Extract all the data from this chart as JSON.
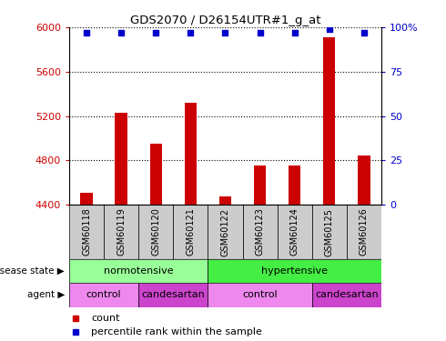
{
  "title": "GDS2070 / D26154UTR#1_g_at",
  "samples": [
    "GSM60118",
    "GSM60119",
    "GSM60120",
    "GSM60121",
    "GSM60122",
    "GSM60123",
    "GSM60124",
    "GSM60125",
    "GSM60126"
  ],
  "counts": [
    4510,
    5230,
    4950,
    5320,
    4470,
    4755,
    4755,
    5910,
    4840
  ],
  "percentile_ranks": [
    97,
    97,
    97,
    97,
    97,
    97,
    97,
    99,
    97
  ],
  "ylim_left": [
    4400,
    6000
  ],
  "ylim_right": [
    0,
    100
  ],
  "yticks_left": [
    4400,
    4800,
    5200,
    5600,
    6000
  ],
  "yticks_right": [
    0,
    25,
    50,
    75,
    100
  ],
  "bar_color": "#cc0000",
  "dot_color": "#0000cc",
  "bar_baseline": 4400,
  "disease_state": [
    {
      "label": "normotensive",
      "start": 0,
      "end": 4,
      "color": "#99ff99"
    },
    {
      "label": "hypertensive",
      "start": 4,
      "end": 9,
      "color": "#44ee44"
    }
  ],
  "agent": [
    {
      "label": "control",
      "start": 0,
      "end": 2,
      "color": "#ee88ee"
    },
    {
      "label": "candesartan",
      "start": 2,
      "end": 4,
      "color": "#cc44cc"
    },
    {
      "label": "control",
      "start": 4,
      "end": 7,
      "color": "#ee88ee"
    },
    {
      "label": "candesartan",
      "start": 7,
      "end": 9,
      "color": "#cc44cc"
    }
  ],
  "legend_items": [
    {
      "label": "count",
      "color": "#cc0000"
    },
    {
      "label": "percentile rank within the sample",
      "color": "#0000cc"
    }
  ],
  "tick_color_left": "#cc0000",
  "tick_color_right": "#0000cc",
  "sample_bg_color": "#cccccc",
  "bar_width": 0.35
}
